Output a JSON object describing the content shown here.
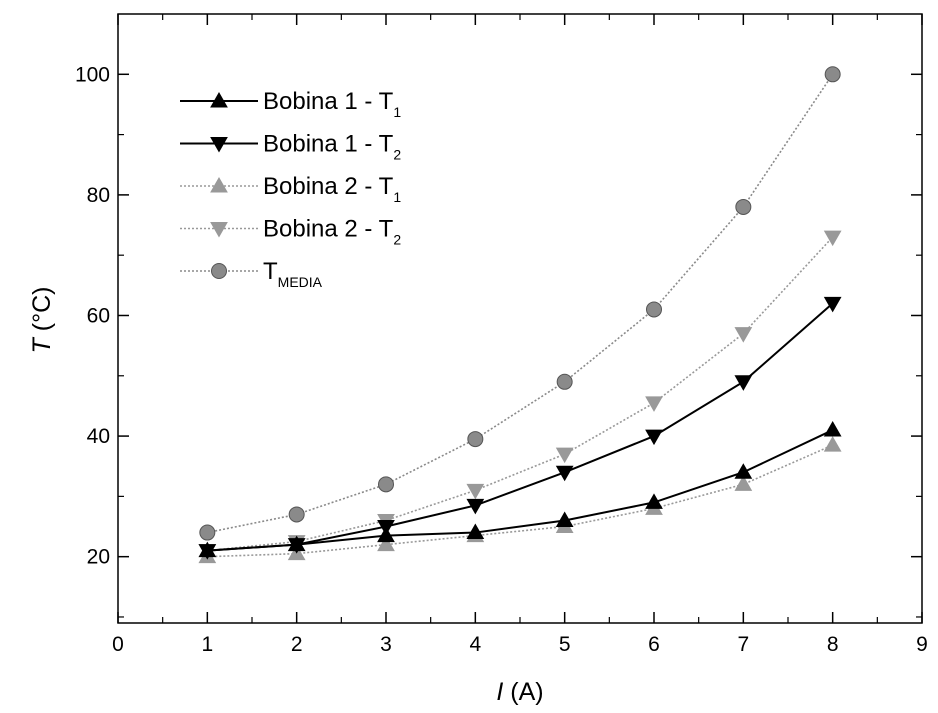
{
  "chart_data": {
    "type": "line",
    "x": [
      1,
      2,
      3,
      4,
      5,
      6,
      7,
      8
    ],
    "xlim": [
      0,
      9
    ],
    "ylim": [
      9,
      110
    ],
    "xticks": [
      0,
      1,
      2,
      3,
      4,
      5,
      6,
      7,
      8,
      9
    ],
    "yticks": [
      20,
      40,
      60,
      80,
      100
    ],
    "xlabel": {
      "italic": "I",
      "rest": " (A)"
    },
    "ylabel": {
      "italic": "T",
      "rest": " (°C)"
    },
    "grid": false,
    "legend_position": "top-left",
    "series": [
      {
        "name": "Bobina 1 - T",
        "sub": "1",
        "marker": "triangle-up",
        "color": "#000000",
        "line": "solid",
        "values": [
          21,
          22,
          23.5,
          24,
          26,
          29,
          34,
          41
        ]
      },
      {
        "name": "Bobina 1 - T",
        "sub": "2",
        "marker": "triangle-down",
        "color": "#000000",
        "line": "solid",
        "values": [
          21,
          22,
          25,
          28.5,
          34,
          40,
          49,
          62
        ]
      },
      {
        "name": "Bobina 2 - T",
        "sub": "1",
        "marker": "triangle-up",
        "color": "#999999",
        "line": "dotted",
        "values": [
          20,
          20.5,
          22,
          23.5,
          25,
          28,
          32,
          38.5
        ]
      },
      {
        "name": "Bobina 2 - T",
        "sub": "2",
        "marker": "triangle-down",
        "color": "#999999",
        "line": "dotted",
        "values": [
          21,
          22.5,
          26,
          31,
          37,
          45.5,
          57,
          73
        ]
      },
      {
        "name": "T",
        "sub": "MEDIA",
        "marker": "circle",
        "color": "#8a8a8a",
        "line": "dotted",
        "values": [
          24,
          27,
          32,
          39.5,
          49,
          61,
          78,
          100
        ]
      }
    ]
  }
}
